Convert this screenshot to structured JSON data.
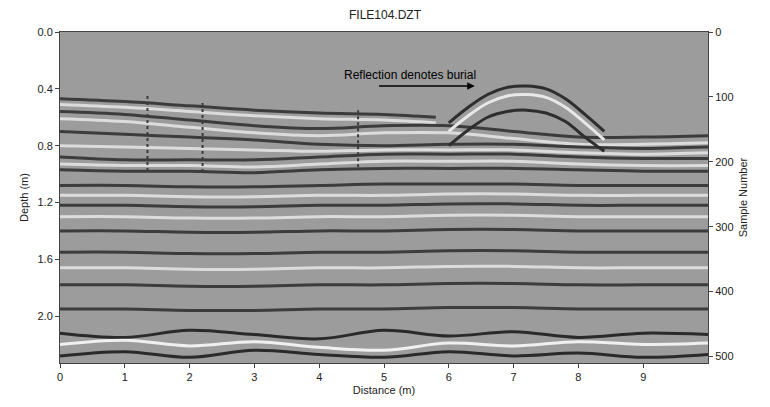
{
  "chart_data": {
    "type": "line",
    "title": "FILE104.DZT",
    "x_label": "Distance (m)",
    "y_label": "Depth (m)",
    "y2_label": "Sample Number",
    "xlim": [
      0,
      10
    ],
    "xticks": [
      0,
      1,
      2,
      3,
      4,
      5,
      6,
      7,
      8,
      9
    ],
    "ylim": [
      2.33,
      0
    ],
    "yticks": [
      {
        "value": 0,
        "label": "0.0"
      },
      0.4,
      0.8,
      1.2,
      1.6,
      {
        "value": 2,
        "label": "2.0"
      }
    ],
    "y2lim": [
      510,
      0
    ],
    "y2ticks": [
      0,
      100,
      200,
      300,
      400,
      500
    ],
    "grid": false,
    "annotations": [
      {
        "text": "Reflection denotes burial",
        "x": 5.4,
        "y": 0.3,
        "arrow_x": [
          4.9,
          6.4
        ],
        "arrow_y": 0.38
      }
    ],
    "series": [
      {
        "color": "#3c3c3c",
        "x": [
          0,
          1,
          2,
          3,
          4,
          5,
          5.8
        ],
        "values": [
          0.47,
          0.49,
          0.52,
          0.55,
          0.57,
          0.58,
          0.6
        ]
      },
      {
        "color": "#dcdcdc",
        "x": [
          0,
          1,
          2,
          3,
          4,
          5,
          5.8
        ],
        "values": [
          0.51,
          0.53,
          0.56,
          0.59,
          0.61,
          0.62,
          0.64
        ]
      },
      {
        "color": "#3c3c3c",
        "x": [
          0,
          1,
          2,
          3,
          4,
          5,
          6,
          7,
          8,
          9,
          10
        ],
        "values": [
          0.56,
          0.58,
          0.62,
          0.66,
          0.68,
          0.66,
          0.66,
          0.7,
          0.74,
          0.74,
          0.73
        ]
      },
      {
        "color": "#dcdcdc",
        "x": [
          0,
          1,
          2,
          3,
          4,
          5,
          6,
          7,
          8,
          9,
          10
        ],
        "values": [
          0.61,
          0.63,
          0.67,
          0.71,
          0.73,
          0.71,
          0.71,
          0.75,
          0.79,
          0.79,
          0.78
        ]
      },
      {
        "color": "#3c3c3c",
        "x": [
          0,
          1,
          2,
          3,
          4,
          5,
          6,
          7,
          8,
          9,
          10
        ],
        "values": [
          0.7,
          0.72,
          0.74,
          0.76,
          0.79,
          0.8,
          0.79,
          0.79,
          0.81,
          0.82,
          0.81
        ]
      },
      {
        "color": "#dcdcdc",
        "x": [
          0,
          1,
          2,
          3,
          4,
          5,
          6,
          7,
          8,
          9,
          10
        ],
        "values": [
          0.8,
          0.81,
          0.82,
          0.83,
          0.84,
          0.83,
          0.83,
          0.83,
          0.85,
          0.86,
          0.85
        ]
      },
      {
        "color": "#3c3c3c",
        "x": [
          0,
          1,
          2,
          3,
          4,
          5,
          6,
          7,
          8,
          9,
          10
        ],
        "values": [
          0.88,
          0.9,
          0.9,
          0.9,
          0.88,
          0.86,
          0.86,
          0.86,
          0.88,
          0.89,
          0.89
        ]
      },
      {
        "color": "#dcdcdc",
        "x": [
          0,
          1,
          2,
          3,
          4,
          5,
          6,
          7,
          8,
          9,
          10
        ],
        "values": [
          0.93,
          0.94,
          0.94,
          0.95,
          0.93,
          0.91,
          0.91,
          0.91,
          0.93,
          0.94,
          0.94
        ]
      },
      {
        "color": "#3c3c3c",
        "x": [
          0,
          1,
          2,
          3,
          4,
          5,
          6,
          7,
          8,
          9,
          10
        ],
        "values": [
          0.97,
          0.98,
          0.98,
          0.99,
          0.97,
          0.96,
          0.96,
          0.96,
          0.97,
          0.98,
          0.98
        ]
      },
      {
        "color": "#3c3c3c",
        "x": [
          0,
          1,
          2,
          3,
          4,
          5,
          6,
          7,
          8,
          9,
          10
        ],
        "values": [
          1.08,
          1.08,
          1.09,
          1.09,
          1.08,
          1.07,
          1.07,
          1.07,
          1.08,
          1.08,
          1.08
        ]
      },
      {
        "color": "#dcdcdc",
        "x": [
          0,
          1,
          2,
          3,
          4,
          5,
          6,
          7,
          8,
          9,
          10
        ],
        "values": [
          1.15,
          1.15,
          1.16,
          1.16,
          1.15,
          1.15,
          1.14,
          1.14,
          1.15,
          1.15,
          1.15
        ]
      },
      {
        "color": "#3c3c3c",
        "x": [
          0,
          1,
          2,
          3,
          4,
          5,
          6,
          7,
          8,
          9,
          10
        ],
        "values": [
          1.22,
          1.22,
          1.23,
          1.23,
          1.22,
          1.22,
          1.21,
          1.21,
          1.22,
          1.22,
          1.22
        ]
      },
      {
        "color": "#dcdcdc",
        "x": [
          0,
          1,
          2,
          3,
          4,
          5,
          6,
          7,
          8,
          9,
          10
        ],
        "values": [
          1.3,
          1.3,
          1.31,
          1.31,
          1.3,
          1.3,
          1.29,
          1.29,
          1.3,
          1.3,
          1.3
        ]
      },
      {
        "color": "#3c3c3c",
        "x": [
          0,
          1,
          2,
          3,
          4,
          5,
          6,
          7,
          8,
          9,
          10
        ],
        "values": [
          1.4,
          1.4,
          1.41,
          1.41,
          1.4,
          1.4,
          1.39,
          1.39,
          1.4,
          1.4,
          1.4
        ]
      },
      {
        "color": "#3c3c3c",
        "x": [
          0,
          1,
          2,
          3,
          4,
          5,
          6,
          7,
          8,
          9,
          10
        ],
        "values": [
          1.55,
          1.55,
          1.56,
          1.56,
          1.55,
          1.55,
          1.54,
          1.54,
          1.55,
          1.55,
          1.55
        ]
      },
      {
        "color": "#dcdcdc",
        "x": [
          0,
          1,
          2,
          3,
          4,
          5,
          6,
          7,
          8,
          9,
          10
        ],
        "values": [
          1.66,
          1.66,
          1.67,
          1.67,
          1.66,
          1.66,
          1.65,
          1.65,
          1.66,
          1.66,
          1.66
        ]
      },
      {
        "color": "#3c3c3c",
        "x": [
          0,
          1,
          2,
          3,
          4,
          5,
          6,
          7,
          8,
          9,
          10
        ],
        "values": [
          1.78,
          1.78,
          1.79,
          1.79,
          1.78,
          1.78,
          1.77,
          1.77,
          1.78,
          1.78,
          1.78
        ]
      },
      {
        "color": "#3c3c3c",
        "x": [
          0,
          1,
          2,
          3,
          4,
          5,
          6,
          7,
          8,
          9,
          10
        ],
        "values": [
          1.95,
          1.95,
          1.96,
          1.96,
          1.95,
          1.95,
          1.94,
          1.94,
          1.95,
          1.95,
          1.95
        ]
      },
      {
        "color": "#2a2a2a",
        "x": [
          0,
          1,
          2,
          3,
          4,
          5,
          6,
          7,
          8,
          9,
          10
        ],
        "values": [
          2.12,
          2.15,
          2.1,
          2.13,
          2.16,
          2.1,
          2.14,
          2.11,
          2.15,
          2.12,
          2.13
        ]
      },
      {
        "color": "#f0f0f0",
        "x": [
          0,
          1,
          2,
          3,
          4,
          5,
          6,
          7,
          8,
          9,
          10
        ],
        "values": [
          2.2,
          2.17,
          2.21,
          2.18,
          2.22,
          2.24,
          2.19,
          2.21,
          2.18,
          2.2,
          2.19
        ]
      },
      {
        "color": "#2a2a2a",
        "x": [
          0,
          1,
          2,
          3,
          4,
          5,
          6,
          7,
          8,
          9,
          10
        ],
        "values": [
          2.28,
          2.25,
          2.29,
          2.24,
          2.27,
          2.29,
          2.25,
          2.28,
          2.26,
          2.29,
          2.27
        ]
      },
      {
        "color": "#2e2e2e",
        "x": [
          6.0,
          6.3,
          6.6,
          6.9,
          7.2,
          7.5,
          7.8,
          8.1,
          8.4
        ],
        "values": [
          0.64,
          0.53,
          0.44,
          0.39,
          0.38,
          0.4,
          0.47,
          0.58,
          0.7
        ]
      },
      {
        "color": "#e8e8e8",
        "x": [
          6.0,
          6.3,
          6.6,
          6.9,
          7.2,
          7.5,
          7.8,
          8.1,
          8.4
        ],
        "values": [
          0.7,
          0.59,
          0.5,
          0.45,
          0.44,
          0.46,
          0.53,
          0.64,
          0.76
        ]
      },
      {
        "color": "#2e2e2e",
        "x": [
          6.0,
          6.3,
          6.6,
          6.9,
          7.2,
          7.5,
          7.8,
          8.1,
          8.4
        ],
        "values": [
          0.8,
          0.69,
          0.6,
          0.56,
          0.55,
          0.57,
          0.63,
          0.74,
          0.84
        ]
      },
      {
        "color": "#3c3c3c",
        "line_style": "dot",
        "x": [
          1.35,
          1.35
        ],
        "values": [
          0.45,
          1.0
        ]
      },
      {
        "color": "#3c3c3c",
        "line_style": "dot",
        "x": [
          2.2,
          2.2
        ],
        "values": [
          0.5,
          1.0
        ]
      },
      {
        "color": "#3c3c3c",
        "line_style": "dot",
        "x": [
          4.6,
          4.6
        ],
        "values": [
          0.55,
          0.95
        ]
      }
    ]
  }
}
